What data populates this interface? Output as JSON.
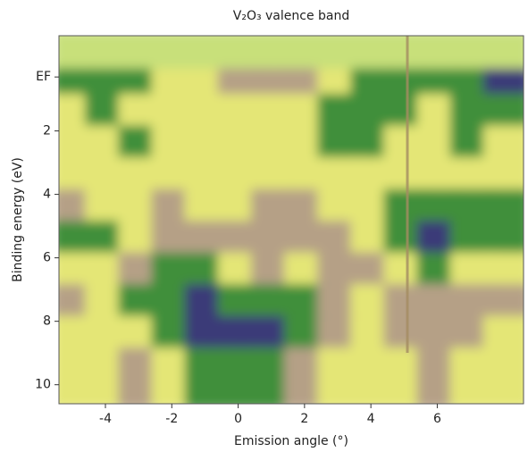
{
  "chart_data": {
    "type": "heatmap",
    "title": "V₂O₃ valence band",
    "x_label": "Emission angle (°)",
    "y_label": "Binding energy (eV)",
    "xlim": [
      -5.4,
      8.6
    ],
    "ylim": [
      10.6,
      -1
    ],
    "xticks": [
      -4,
      -2,
      0,
      2,
      4,
      6
    ],
    "yticks": [
      {
        "value": 0.3,
        "label": "EF"
      },
      2,
      4,
      6,
      8,
      10
    ],
    "x_edges": [
      -5.4,
      -4.4,
      -3.4,
      -2.4,
      -1.4,
      -0.4,
      0.6,
      1.6,
      2.6,
      3.6,
      4.6,
      5.6,
      6.6,
      7.6,
      8.6
    ],
    "y_edges": [
      -1,
      0.2,
      1,
      2,
      3,
      4,
      5,
      6,
      7,
      8,
      9,
      10.6
    ],
    "colors": [
      "#c8e07a",
      "#e4e676",
      "#b5a086",
      "#3f8f3a",
      "#3a3a78"
    ],
    "z": [
      [
        0,
        0,
        0,
        0,
        0,
        0,
        0,
        0,
        0,
        0,
        0,
        0,
        0,
        0
      ],
      [
        3,
        3,
        3,
        1,
        1,
        2,
        2,
        2,
        1,
        3,
        3,
        3,
        3,
        4
      ],
      [
        1,
        3,
        1,
        1,
        1,
        1,
        1,
        1,
        3,
        3,
        3,
        1,
        3,
        3
      ],
      [
        1,
        1,
        3,
        1,
        1,
        1,
        1,
        1,
        3,
        3,
        1,
        1,
        3,
        1
      ],
      [
        1,
        1,
        1,
        1,
        1,
        1,
        1,
        1,
        1,
        1,
        1,
        1,
        1,
        1
      ],
      [
        2,
        1,
        1,
        2,
        1,
        1,
        2,
        2,
        1,
        1,
        3,
        3,
        3,
        3
      ],
      [
        3,
        3,
        1,
        2,
        2,
        2,
        2,
        2,
        2,
        1,
        3,
        4,
        3,
        3
      ],
      [
        1,
        1,
        2,
        3,
        3,
        1,
        2,
        1,
        2,
        2,
        1,
        3,
        1,
        1
      ],
      [
        2,
        1,
        3,
        3,
        4,
        3,
        3,
        3,
        2,
        1,
        2,
        2,
        2,
        2
      ],
      [
        1,
        1,
        1,
        3,
        4,
        4,
        4,
        3,
        2,
        1,
        2,
        2,
        2,
        1
      ],
      [
        1,
        1,
        2,
        1,
        3,
        3,
        3,
        2,
        1,
        1,
        1,
        2,
        1,
        1
      ]
    ]
  }
}
